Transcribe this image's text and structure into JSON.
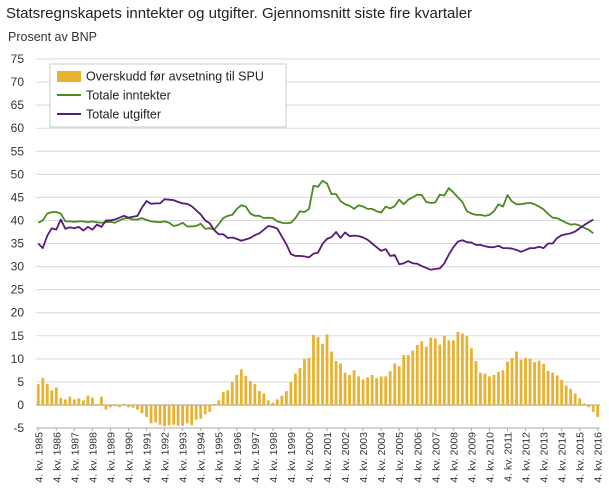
{
  "chart_data": {
    "type": "bar+line",
    "title": "Statsregnskapets inntekter og utgifter. Gjennomsnitt siste fire kvartaler",
    "ylabel": "Prosent av BNP",
    "ylim": [
      -5,
      75
    ],
    "yticks": [
      -5,
      0,
      5,
      10,
      15,
      20,
      25,
      30,
      35,
      40,
      45,
      50,
      55,
      60,
      65,
      70,
      75
    ],
    "x_start": "1985Q4",
    "x_end": "2016Q4",
    "x_tick_labels": [
      "4. kv. 1985",
      "4. kv. 1986",
      "4. kv. 1987",
      "4. kv. 1988",
      "4. kv. 1989",
      "4. kv. 1990",
      "4. kv. 1991",
      "4. kv. 1992",
      "4. kv. 1993",
      "4. kv. 1994",
      "4. kv. 1995",
      "4. kv. 1996",
      "4. kv. 1997",
      "4. kv. 1998",
      "4. kv. 1999",
      "4. kv. 2000",
      "4. kv. 2001",
      "4. kv. 2002",
      "4. kv. 2003",
      "4. kv. 2004",
      "4. kv. 2005",
      "4. kv. 2006",
      "4. kv. 2007",
      "4. kv. 2008",
      "4. kv. 2009",
      "4. kv. 2010",
      "4. kv. 2011",
      "4. kv. 2012",
      "4. kv. 2013",
      "4. kv. 2014",
      "4. kv. 2015",
      "4. kv. 2016"
    ],
    "grid": true,
    "legend_position": "top-left",
    "series": [
      {
        "name": "Overskudd før avsetning til SPU",
        "type": "bar",
        "color": "#e8b230",
        "values": [
          4.5,
          5.8,
          4.6,
          3.2,
          3.8,
          1.5,
          1.2,
          1.8,
          1.2,
          1.4,
          1.0,
          2.0,
          1.6,
          0.2,
          1.8,
          -1.0,
          -0.5,
          -0.3,
          -0.5,
          0.2,
          -0.5,
          -0.6,
          -1.0,
          -1.8,
          -2.6,
          -4.0,
          -3.8,
          -4.3,
          -4.6,
          -4.4,
          -4.3,
          -4.5,
          -4.5,
          -4.0,
          -4.4,
          -3.2,
          -3.0,
          -2.0,
          -1.5,
          0.2,
          1.0,
          2.8,
          3.2,
          5.0,
          6.5,
          7.7,
          6.3,
          5.2,
          4.5,
          3.0,
          2.5,
          1.0,
          0.5,
          1.2,
          2.0,
          3.0,
          5.0,
          6.8,
          8.0,
          10.0,
          10.2,
          15.2,
          14.7,
          13.3,
          15.3,
          11.6,
          9.5,
          9.0,
          7.0,
          6.5,
          7.5,
          6.2,
          5.5,
          6.0,
          6.5,
          5.8,
          6.2,
          6.2,
          7.3,
          9.0,
          8.4,
          10.8,
          10.8,
          11.8,
          13.0,
          13.8,
          12.6,
          14.6,
          14.4,
          13.1,
          15.0,
          14.0,
          14.0,
          15.8,
          15.5,
          14.9,
          12.3,
          9.5,
          7.0,
          6.8,
          6.2,
          6.5,
          7.2,
          7.5,
          9.4,
          10.2,
          11.6,
          9.8,
          10.2,
          10.0,
          9.3,
          9.6,
          8.9,
          7.4,
          7.0,
          6.4,
          5.4,
          4.2,
          3.5,
          2.5,
          1.4,
          0.3,
          -0.5,
          -1.5,
          -2.6
        ]
      },
      {
        "name": "Totale inntekter",
        "type": "line",
        "color": "#4a8a1e",
        "values": [
          39.5,
          40.0,
          41.5,
          41.8,
          41.8,
          41.5,
          39.8,
          39.8,
          39.7,
          39.8,
          39.8,
          39.6,
          39.8,
          39.6,
          39.5,
          39.6,
          39.7,
          39.5,
          40.0,
          40.4,
          40.5,
          40.2,
          40.2,
          40.5,
          40.1,
          39.8,
          39.7,
          39.6,
          39.8,
          39.5,
          38.8,
          39.0,
          39.5,
          38.7,
          38.7,
          38.8,
          39.3,
          38.2,
          38.3,
          38.0,
          39.2,
          40.5,
          41.0,
          41.2,
          42.5,
          43.3,
          43.0,
          41.5,
          41.0,
          41.0,
          40.5,
          40.6,
          40.5,
          39.8,
          39.5,
          39.4,
          39.5,
          40.5,
          42.0,
          41.8,
          42.5,
          47.5,
          47.3,
          48.6,
          48.0,
          45.7,
          45.7,
          44.2,
          43.5,
          43.2,
          42.5,
          43.3,
          43.0,
          42.5,
          42.5,
          42.0,
          41.7,
          43.0,
          42.6,
          43.1,
          44.5,
          43.5,
          44.5,
          45.0,
          45.6,
          45.5,
          44.0,
          43.8,
          43.9,
          45.6,
          45.4,
          47.0,
          46.1,
          45.0,
          44.0,
          42.0,
          41.5,
          41.2,
          41.2,
          41.0,
          41.2,
          42.0,
          43.5,
          43.0,
          45.5,
          44.1,
          43.5,
          43.5,
          43.7,
          43.8,
          43.5,
          43.0,
          42.4,
          41.4,
          40.6,
          40.5,
          40.0,
          39.5,
          39.1,
          39.2,
          38.9,
          38.4,
          38.0,
          37.2
        ]
      },
      {
        "name": "Totale utgifter",
        "type": "line",
        "color": "#5a1a7a",
        "values": [
          35.0,
          34.0,
          36.7,
          38.3,
          38.0,
          40.2,
          38.2,
          38.5,
          38.3,
          38.6,
          37.8,
          38.6,
          38.0,
          39.1,
          38.6,
          40.0,
          40.0,
          40.2,
          40.6,
          41.0,
          40.6,
          40.8,
          41.0,
          42.8,
          44.2,
          43.6,
          43.7,
          43.7,
          44.6,
          44.5,
          44.4,
          44.0,
          43.7,
          43.6,
          43.1,
          42.2,
          41.3,
          40.0,
          39.4,
          37.9,
          37.0,
          37.0,
          36.2,
          36.3,
          36.0,
          35.6,
          35.9,
          36.2,
          36.8,
          37.2,
          38.0,
          38.8,
          38.6,
          38.2,
          36.5,
          34.8,
          32.7,
          32.3,
          32.3,
          32.2,
          32.0,
          32.8,
          33.0,
          34.9,
          36.0,
          36.4,
          37.5,
          36.2,
          37.4,
          36.6,
          36.7,
          36.6,
          36.3,
          35.8,
          35.0,
          34.2,
          33.4,
          33.8,
          32.3,
          32.5,
          30.5,
          30.7,
          31.2,
          30.7,
          30.6,
          30.1,
          29.7,
          29.3,
          29.5,
          29.6,
          30.7,
          32.6,
          34.2,
          35.4,
          35.7,
          35.3,
          35.2,
          34.7,
          34.7,
          34.4,
          34.2,
          34.2,
          34.5,
          34.0,
          34.0,
          33.9,
          33.6,
          33.2,
          33.6,
          34.0,
          34.0,
          34.3,
          34.0,
          35.0,
          35.0,
          36.2,
          36.8,
          37.0,
          37.2,
          37.6,
          38.3,
          39.0,
          39.6,
          40.2
        ]
      }
    ]
  }
}
